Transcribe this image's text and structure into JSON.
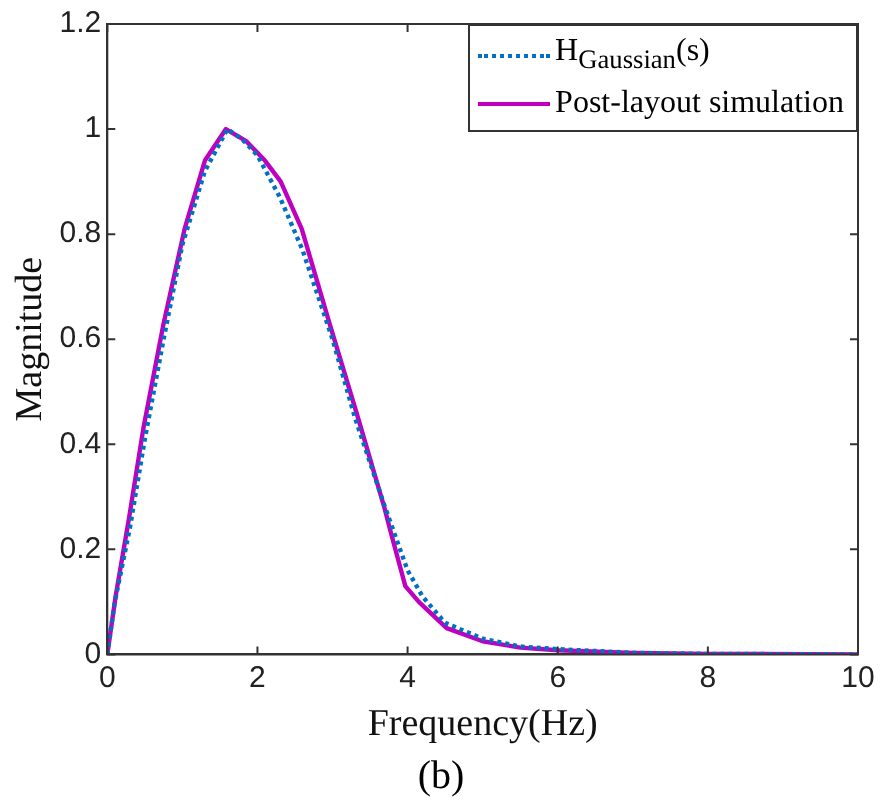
{
  "chart_data": {
    "type": "line",
    "xlabel": "Frequency(Hz)",
    "ylabel": "Magnitude",
    "annotations": [
      "(b)"
    ],
    "xlim": [
      0,
      10
    ],
    "xticks": [
      0,
      2,
      4,
      6,
      8,
      10
    ],
    "ylim": [
      0,
      1.2
    ],
    "yticks": [
      0,
      0.2,
      0.4,
      0.6,
      0.8,
      1,
      1.2
    ],
    "grid": false,
    "legend": "top right",
    "marker": "none",
    "series": [
      {
        "name": "H$_{Gaussian}$(s)",
        "color": "#0070c0",
        "line_style": "dotted",
        "x": [
          0,
          0.1,
          0.3,
          0.5,
          0.75,
          1,
          1.3,
          1.6,
          1.8,
          2,
          2.3,
          2.6,
          3,
          3.3,
          3.7,
          4,
          4.2,
          4.5,
          5,
          5.5,
          6,
          7,
          8,
          10
        ],
        "values": [
          0,
          0.1,
          0.24,
          0.41,
          0.6,
          0.78,
          0.92,
          1,
          0.98,
          0.95,
          0.87,
          0.77,
          0.6,
          0.45,
          0.28,
          0.16,
          0.11,
          0.06,
          0.03,
          0.015,
          0.01,
          0.003,
          0.001,
          0
        ]
      },
      {
        "name": "Post-layout simulation",
        "color": "#c000c0",
        "line_style": "solid",
        "x": [
          0,
          0.11,
          0.29,
          0.48,
          0.75,
          1.03,
          1.3,
          1.58,
          1.85,
          2.1,
          2.31,
          2.59,
          2.96,
          3.32,
          3.69,
          3.78,
          3.97,
          4.15,
          4.52,
          5,
          5.5,
          6,
          7,
          8,
          10
        ],
        "values": [
          0,
          0.11,
          0.26,
          0.43,
          0.63,
          0.81,
          0.94,
          1,
          0.977,
          0.94,
          0.9,
          0.81,
          0.63,
          0.46,
          0.28,
          0.23,
          0.13,
          0.1,
          0.05,
          0.025,
          0.013,
          0.008,
          0.003,
          0.001,
          0
        ]
      }
    ]
  }
}
